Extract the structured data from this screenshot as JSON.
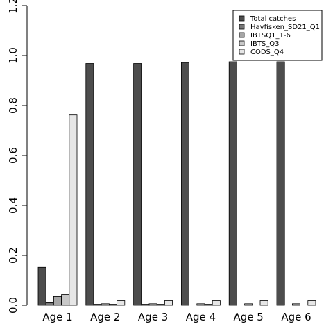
{
  "chart_data": {
    "type": "bar",
    "layout": "grouped",
    "categories": [
      "Age 1",
      "Age 2",
      "Age 3",
      "Age 4",
      "Age 5",
      "Age 6"
    ],
    "series": [
      {
        "name": "Total catches",
        "color": "#4d4d4d",
        "values": [
          0.152,
          0.968,
          0.968,
          0.972,
          0.975,
          0.975
        ]
      },
      {
        "name": "Havfisken_SD21_Q1",
        "color": "#777777",
        "values": [
          0.01,
          0.004,
          0.004,
          0.0,
          0.0,
          0.0
        ]
      },
      {
        "name": "IBTSQ1_1-6",
        "color": "#a6a6a6",
        "values": [
          0.035,
          0.006,
          0.006,
          0.006,
          0.006,
          0.006
        ]
      },
      {
        "name": "IBTS_Q3",
        "color": "#c8c8c8",
        "values": [
          0.043,
          0.004,
          0.004,
          0.004,
          0.0,
          0.0
        ]
      },
      {
        "name": "CODS_Q4",
        "color": "#e6e6e6",
        "values": [
          0.762,
          0.018,
          0.018,
          0.018,
          0.018,
          0.018
        ]
      }
    ],
    "ylim": [
      0,
      1.2
    ],
    "yticks": [
      "0.0",
      "0.2",
      "0.4",
      "0.6",
      "0.8",
      "1.0",
      "1.2"
    ],
    "title": "",
    "xlabel": "",
    "ylabel": "",
    "legend_position": "top-right",
    "grid": false
  }
}
